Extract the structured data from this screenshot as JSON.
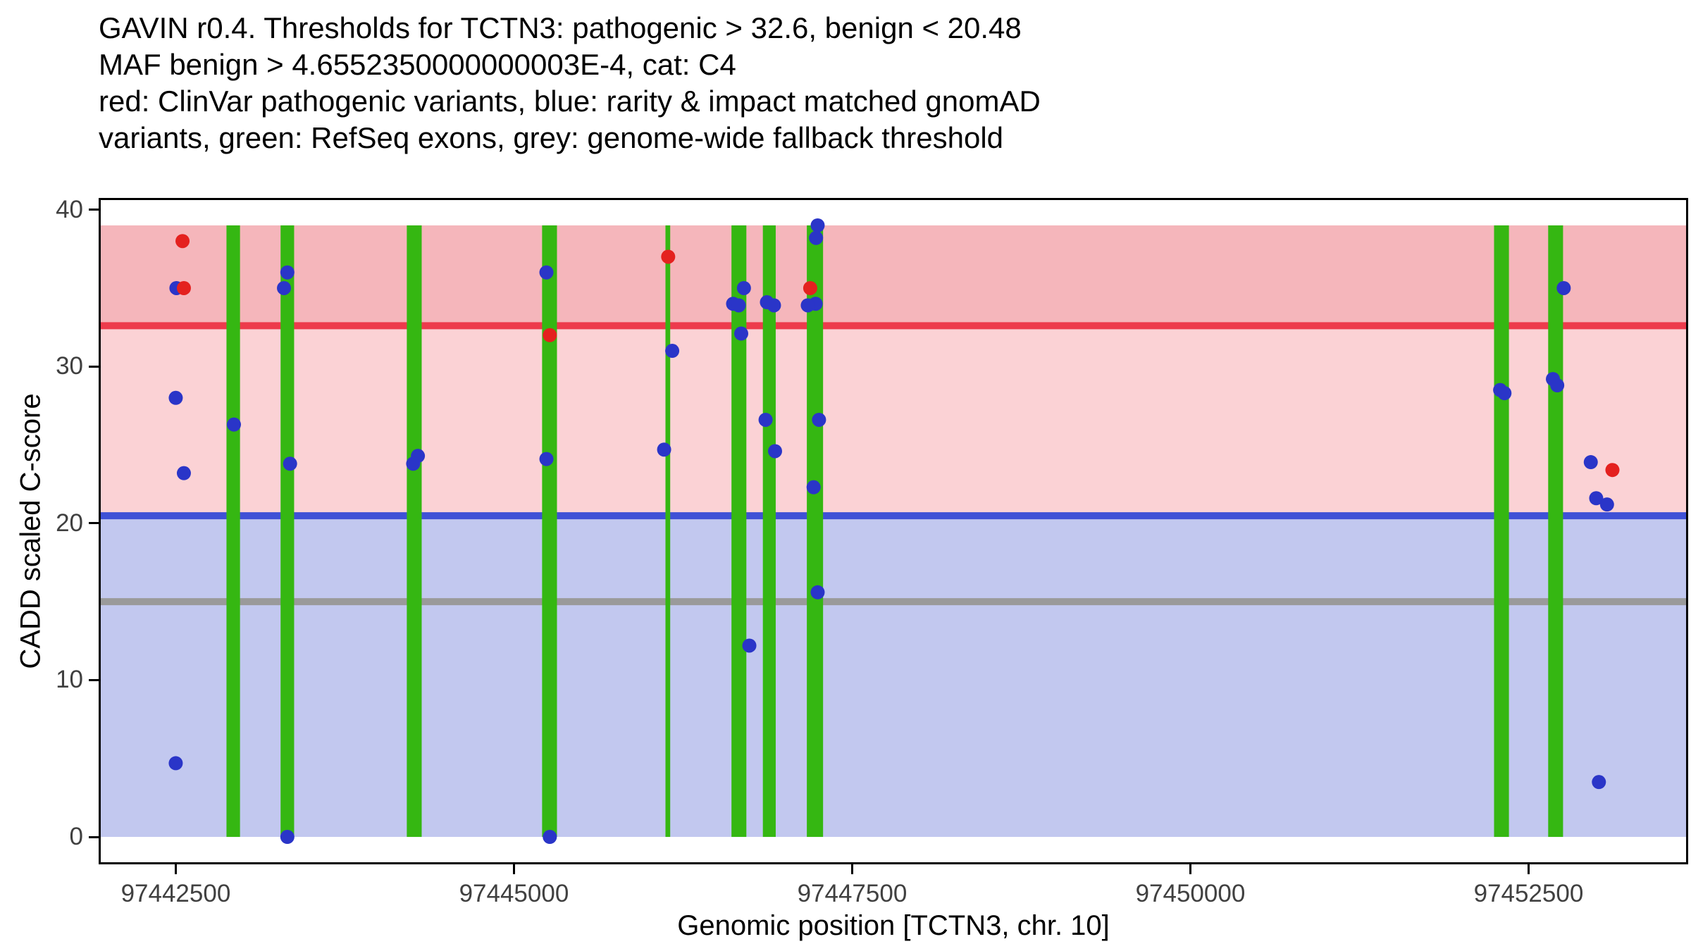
{
  "chart_data": {
    "type": "scatter",
    "title_lines": [
      "GAVIN r0.4. Thresholds for TCTN3: pathogenic > 32.6, benign < 20.48",
      "MAF benign > 4.6552350000000003E-4, cat: C4",
      "red: ClinVar pathogenic variants, blue: rarity & impact matched gnomAD",
      "variants, green: RefSeq exons, grey: genome-wide fallback threshold"
    ],
    "xlabel": "Genomic position [TCTN3, chr. 10]",
    "ylabel": "CADD scaled C-score",
    "xlim": [
      97441930,
      97453680
    ],
    "ylim": [
      -1.75,
      40.75
    ],
    "x_ticks": [
      97442500,
      97445000,
      97447500,
      97450000,
      97452500
    ],
    "y_ticks": [
      0,
      10,
      20,
      30,
      40
    ],
    "thresholds": {
      "pathogenic": 32.6,
      "benign": 20.48,
      "genome_wide_fallback": 15
    },
    "shade_range": [
      0,
      39
    ],
    "exons": [
      {
        "start": 97442875,
        "end": 97442975
      },
      {
        "start": 97443275,
        "end": 97443375
      },
      {
        "start": 97444208,
        "end": 97444318
      },
      {
        "start": 97445208,
        "end": 97445318
      },
      {
        "start": 97446120,
        "end": 97446155
      },
      {
        "start": 97446608,
        "end": 97446718
      },
      {
        "start": 97446840,
        "end": 97446935
      },
      {
        "start": 97447165,
        "end": 97447285
      },
      {
        "start": 97452245,
        "end": 97452355
      },
      {
        "start": 97452645,
        "end": 97452755
      }
    ],
    "series": [
      {
        "name": "rarity & impact matched gnomAD variants",
        "color": "#2a35c8",
        "points": [
          [
            97442505,
            35.0
          ],
          [
            97442500,
            28.0
          ],
          [
            97442560,
            23.2
          ],
          [
            97442500,
            4.7
          ],
          [
            97442930,
            26.3
          ],
          [
            97443325,
            36.0
          ],
          [
            97443300,
            35.0
          ],
          [
            97443345,
            23.8
          ],
          [
            97443325,
            0.0
          ],
          [
            97444290,
            24.3
          ],
          [
            97444255,
            23.8
          ],
          [
            97445240,
            36.0
          ],
          [
            97445240,
            24.1
          ],
          [
            97445265,
            0.0
          ],
          [
            97446170,
            31.0
          ],
          [
            97446110,
            24.7
          ],
          [
            97446620,
            34.0
          ],
          [
            97446662,
            33.9
          ],
          [
            97446700,
            35.0
          ],
          [
            97446680,
            32.1
          ],
          [
            97446740,
            12.2
          ],
          [
            97446870,
            34.1
          ],
          [
            97446922,
            33.9
          ],
          [
            97446860,
            26.6
          ],
          [
            97446930,
            24.6
          ],
          [
            97447245,
            39.0
          ],
          [
            97447233,
            38.2
          ],
          [
            97447230,
            34.0
          ],
          [
            97447172,
            33.9
          ],
          [
            97447255,
            26.6
          ],
          [
            97447215,
            22.3
          ],
          [
            97447245,
            15.6
          ],
          [
            97452290,
            28.5
          ],
          [
            97452322,
            28.3
          ],
          [
            97452680,
            29.2
          ],
          [
            97452712,
            28.8
          ],
          [
            97452760,
            35.0
          ],
          [
            97452960,
            23.9
          ],
          [
            97453000,
            21.6
          ],
          [
            97453080,
            21.2
          ],
          [
            97453020,
            3.5
          ]
        ]
      },
      {
        "name": "ClinVar pathogenic variants",
        "color": "#e4211f",
        "points": [
          [
            97442550,
            38.0
          ],
          [
            97442560,
            35.0
          ],
          [
            97445265,
            32.0
          ],
          [
            97446140,
            37.0
          ],
          [
            97447190,
            35.0
          ],
          [
            97453120,
            23.4
          ]
        ]
      }
    ],
    "colors": {
      "benign_region": "#c2c8ef",
      "vus_region": "#fbd2d5",
      "pathogenic_region": "#f5b6bb",
      "pathogenic_line": "#ed3b4c",
      "benign_line": "#3f51d6",
      "fallback_line": "#9a9a9a",
      "exon": "#35b712",
      "axis": "#000000",
      "tick_label": "#404040"
    }
  }
}
